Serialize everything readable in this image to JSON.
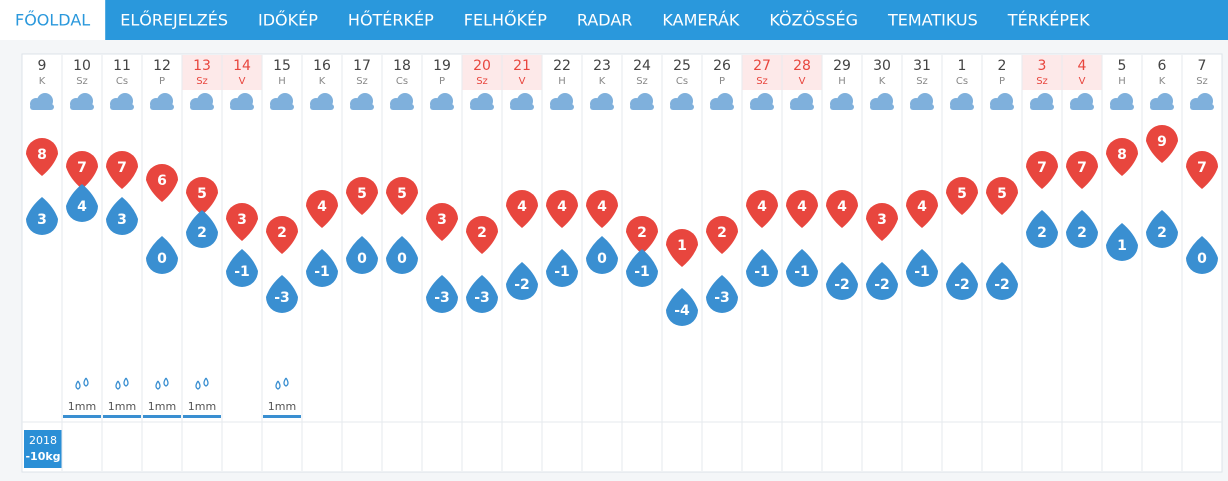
{
  "nav": [
    "FŐOLDAL",
    "ELŐREJELZÉS",
    "IDŐKÉP",
    "HŐTÉRKÉP",
    "FELHŐKÉP",
    "RADAR",
    "KAMERÁK",
    "KÖZÖSSÉG",
    "TEMATIKUS",
    "TÉRKÉPEK"
  ],
  "days": [
    {
      "day": "9",
      "weekday": "K",
      "max": 8,
      "min": 3
    },
    {
      "day": "10",
      "weekday": "Sz",
      "max": 7,
      "min": 4,
      "precip": "1mm"
    },
    {
      "day": "11",
      "weekday": "Cs",
      "max": 7,
      "min": 3,
      "precip": "1mm"
    },
    {
      "day": "12",
      "weekday": "P",
      "max": 6,
      "min": 0,
      "precip": "1mm"
    },
    {
      "day": "13",
      "weekday": "Sz",
      "weekend": true,
      "max": 5,
      "min": 2,
      "precip": "1mm"
    },
    {
      "day": "14",
      "weekday": "V",
      "weekend": true,
      "max": 3,
      "min": -1
    },
    {
      "day": "15",
      "weekday": "H",
      "max": 2,
      "min": -3,
      "precip": "1mm"
    },
    {
      "day": "16",
      "weekday": "K",
      "max": 4,
      "min": -1
    },
    {
      "day": "17",
      "weekday": "Sz",
      "max": 5,
      "min": 0
    },
    {
      "day": "18",
      "weekday": "Cs",
      "max": 5,
      "min": 0
    },
    {
      "day": "19",
      "weekday": "P",
      "max": 3,
      "min": -3
    },
    {
      "day": "20",
      "weekday": "Sz",
      "weekend": true,
      "max": 2,
      "min": -3
    },
    {
      "day": "21",
      "weekday": "V",
      "weekend": true,
      "max": 4,
      "min": -2
    },
    {
      "day": "22",
      "weekday": "H",
      "max": 4,
      "min": -1
    },
    {
      "day": "23",
      "weekday": "K",
      "max": 4,
      "min": 0
    },
    {
      "day": "24",
      "weekday": "Sz",
      "max": 2,
      "min": -1
    },
    {
      "day": "25",
      "weekday": "Cs",
      "max": 1,
      "min": -4
    },
    {
      "day": "26",
      "weekday": "P",
      "max": 2,
      "min": -3
    },
    {
      "day": "27",
      "weekday": "Sz",
      "weekend": true,
      "max": 4,
      "min": -1
    },
    {
      "day": "28",
      "weekday": "V",
      "weekend": true,
      "max": 4,
      "min": -1
    },
    {
      "day": "29",
      "weekday": "H",
      "max": 4,
      "min": -2
    },
    {
      "day": "30",
      "weekday": "K",
      "max": 3,
      "min": -2
    },
    {
      "day": "31",
      "weekday": "Sz",
      "max": 4,
      "min": -1
    },
    {
      "day": "1",
      "weekday": "Cs",
      "max": 5,
      "min": -2
    },
    {
      "day": "2",
      "weekday": "P",
      "max": 5,
      "min": -2
    },
    {
      "day": "3",
      "weekday": "Sz",
      "weekend": true,
      "max": 7,
      "min": 2
    },
    {
      "day": "4",
      "weekday": "V",
      "weekend": true,
      "max": 7,
      "min": 2
    },
    {
      "day": "5",
      "weekday": "H",
      "max": 8,
      "min": 1
    },
    {
      "day": "6",
      "weekday": "K",
      "max": 9,
      "min": 2
    },
    {
      "day": "7",
      "weekday": "Sz",
      "max": 7,
      "min": 0
    }
  ],
  "badge": {
    "year": "2018",
    "text": "-10kg"
  }
}
